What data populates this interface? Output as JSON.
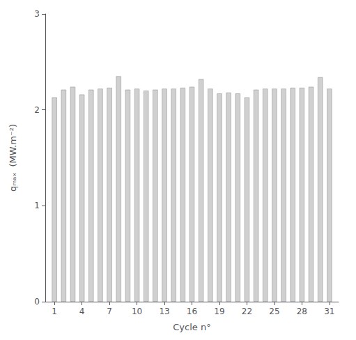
{
  "chart_data": {
    "type": "bar",
    "x": [
      1,
      2,
      3,
      4,
      5,
      6,
      7,
      8,
      9,
      10,
      11,
      12,
      13,
      14,
      15,
      16,
      17,
      18,
      19,
      20,
      21,
      22,
      23,
      24,
      25,
      26,
      27,
      28,
      29,
      30,
      31
    ],
    "values": [
      2.13,
      2.21,
      2.24,
      2.16,
      2.21,
      2.22,
      2.23,
      2.35,
      2.21,
      2.22,
      2.2,
      2.21,
      2.22,
      2.22,
      2.23,
      2.24,
      2.32,
      2.22,
      2.17,
      2.18,
      2.17,
      2.13,
      2.21,
      2.22,
      2.22,
      2.22,
      2.23,
      2.23,
      2.24,
      2.34,
      2.22
    ],
    "color": "#d0d0d0",
    "xlabel": "Cycle n°",
    "ylabel": "qₘₐₓ  (MW.m⁻²)",
    "xlim": [
      0.0,
      32.0
    ],
    "xticks": [
      1,
      4,
      7,
      10,
      13,
      16,
      19,
      22,
      25,
      28,
      31
    ],
    "ylim": [
      0,
      3
    ],
    "yticks": [
      0,
      1,
      2,
      3
    ],
    "grid": false
  }
}
